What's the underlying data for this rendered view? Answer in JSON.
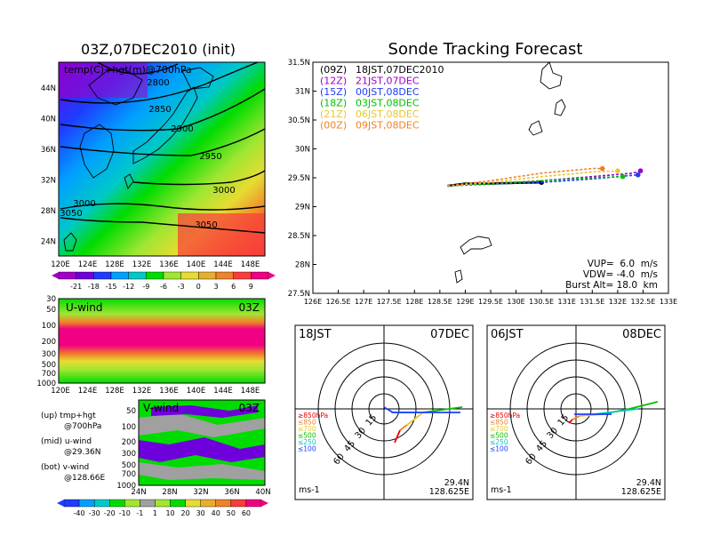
{
  "left_title": "03Z,07DEC2010 (init)",
  "right_title": "Sonde Tracking Forecast",
  "map_panel": {
    "label": "temp(C)+hgt(m)@700hPa",
    "contour_labels": [
      "2800",
      "2850",
      "2900",
      "2950",
      "3000",
      "3000",
      "3050",
      "3050"
    ],
    "x_ticks": [
      "120E",
      "124E",
      "128E",
      "132E",
      "136E",
      "140E",
      "144E",
      "148E"
    ],
    "y_ticks": [
      "44N",
      "40N",
      "36N",
      "32N",
      "28N",
      "24N"
    ],
    "colorbar_labels": [
      "-21",
      "-18",
      "-15",
      "-12",
      "-9",
      "-6",
      "-3",
      "0",
      "3",
      "6",
      "9"
    ],
    "colorbar_colors": [
      "#a000c8",
      "#6e00dc",
      "#1e3cff",
      "#00a0ff",
      "#00c8c8",
      "#00dc00",
      "#a0e632",
      "#e6dc32",
      "#e6af2d",
      "#f08228",
      "#fa3c3c",
      "#f00082"
    ]
  },
  "uwind_panel": {
    "label": "U-wind",
    "time": "03Z",
    "y_ticks": [
      "30",
      "50",
      "100",
      "200",
      "300",
      "500",
      "700",
      "1000"
    ],
    "x_ticks": [
      "120E",
      "124E",
      "128E",
      "132E",
      "136E",
      "140E",
      "144E",
      "148E"
    ]
  },
  "vwind_panel": {
    "label": "V-wind",
    "time": "03Z",
    "y_ticks": [
      "50",
      "100",
      "200",
      "300",
      "500",
      "700",
      "1000"
    ],
    "x_ticks": [
      "24N",
      "28N",
      "32N",
      "36N",
      "40N"
    ]
  },
  "legend_text": {
    "up": "(up) tmp+hgt",
    "up2": "@700hPa",
    "mid": "(mid) u-wind",
    "mid2": "@29.36N",
    "bot": "(bot) v-wind",
    "bot2": "@128.66E"
  },
  "wind_colorbar": {
    "labels": [
      "-40",
      "-30",
      "-20",
      "-10",
      "-1",
      "1",
      "10",
      "20",
      "30",
      "40",
      "50",
      "60"
    ],
    "colors": [
      "#1e3cff",
      "#00a0ff",
      "#00c8c8",
      "#00dc00",
      "#a0e632",
      "#a0a0a0",
      "#a0e632",
      "#00dc00",
      "#e6dc32",
      "#e6af2d",
      "#f08228",
      "#fa3c3c",
      "#f00082"
    ]
  },
  "track_panel": {
    "y_ticks": [
      "31.5N",
      "31N",
      "30.5N",
      "30N",
      "29.5N",
      "29N",
      "28.5N",
      "28N",
      "27.5N"
    ],
    "x_ticks": [
      "126E",
      "126.5E",
      "127E",
      "127.5E",
      "128E",
      "128.5E",
      "129E",
      "129.5E",
      "130E",
      "130.5E",
      "131E",
      "131.5E",
      "132E",
      "132.5E",
      "133E"
    ],
    "legend": [
      {
        "code": "(09Z)",
        "text": "18JST,07DEC2010",
        "color": "#000000"
      },
      {
        "code": "(12Z)",
        "text": "21JST,07DEC",
        "color": "#a000c8"
      },
      {
        "code": "(15Z)",
        "text": "00JST,08DEC",
        "color": "#1e3cff"
      },
      {
        "code": "(18Z)",
        "text": "03JST,08DEC",
        "color": "#00c000"
      },
      {
        "code": "(21Z)",
        "text": "06JST,08DEC",
        "color": "#e6c832"
      },
      {
        "code": "(00Z)",
        "text": "09JST,08DEC",
        "color": "#f08228"
      }
    ],
    "params": [
      "VUP=  6.0  m/s",
      "VDW= -4.0  m/s",
      "Burst Alt= 18.0  km"
    ]
  },
  "polar_left": {
    "time": "18JST",
    "date": "07DEC",
    "lat": "29.4N",
    "lon": "128.625E",
    "units": "ms-1",
    "rings": [
      "15",
      "30",
      "45",
      "60"
    ],
    "levels": [
      "≥850hPa",
      "≤850",
      "≤700",
      "≤500",
      "≤250",
      "≤100"
    ]
  },
  "polar_right": {
    "time": "06JST",
    "date": "08DEC",
    "lat": "29.4N",
    "lon": "128.625E",
    "units": "ms-1",
    "rings": [
      "15",
      "30",
      "45",
      "60"
    ],
    "levels": [
      "≥850hPa",
      "≤850",
      "≤700",
      "≤500",
      "≤250",
      "≤100"
    ]
  },
  "level_colors": [
    "#f00000",
    "#f08228",
    "#e6c832",
    "#00c000",
    "#00c8c8",
    "#1e3cff"
  ],
  "chart_data": [
    {
      "type": "heatmap",
      "title": "03Z,07DEC2010 (init)",
      "panel_label": "temp(C)+hgt(m)@700hPa",
      "contours": [
        2800,
        2850,
        2900,
        2950,
        3000,
        3050
      ],
      "xlim": [
        "120E",
        "150E"
      ],
      "ylim": [
        "22N",
        "48N"
      ]
    },
    {
      "type": "line",
      "title": "Sonde Tracking Forecast",
      "xlim": [
        126,
        133
      ],
      "ylim": [
        27.5,
        31.5
      ],
      "series": [
        {
          "name": "(09Z) 18JST,07DEC2010",
          "x": [
            128.65,
            129.0,
            129.5,
            130.0,
            130.5
          ],
          "y": [
            29.36,
            29.4,
            29.4,
            29.41,
            29.42
          ]
        },
        {
          "name": "(12Z) 21JST,07DEC",
          "x": [
            128.65,
            129.5,
            130.5,
            131.5,
            132.3,
            132.45
          ],
          "y": [
            29.36,
            29.4,
            29.45,
            29.52,
            29.58,
            29.62
          ]
        },
        {
          "name": "(15Z) 00JST,08DEC",
          "x": [
            128.65,
            129.5,
            130.5,
            131.5,
            132.4
          ],
          "y": [
            29.36,
            29.39,
            29.42,
            29.48,
            29.55
          ]
        },
        {
          "name": "(18Z) 03JST,08DEC",
          "x": [
            128.65,
            129.5,
            130.5,
            131.5,
            132.1
          ],
          "y": [
            29.36,
            29.39,
            29.45,
            29.5,
            29.52
          ]
        },
        {
          "name": "(21Z) 06JST,08DEC",
          "x": [
            128.65,
            129.5,
            130.5,
            131.5,
            132.0
          ],
          "y": [
            29.36,
            29.42,
            29.52,
            29.6,
            29.62
          ]
        },
        {
          "name": "(00Z) 09JST,08DEC",
          "x": [
            128.65,
            129.5,
            130.5,
            131.5,
            131.7
          ],
          "y": [
            29.36,
            29.45,
            29.58,
            29.66,
            29.66
          ]
        }
      ]
    }
  ]
}
